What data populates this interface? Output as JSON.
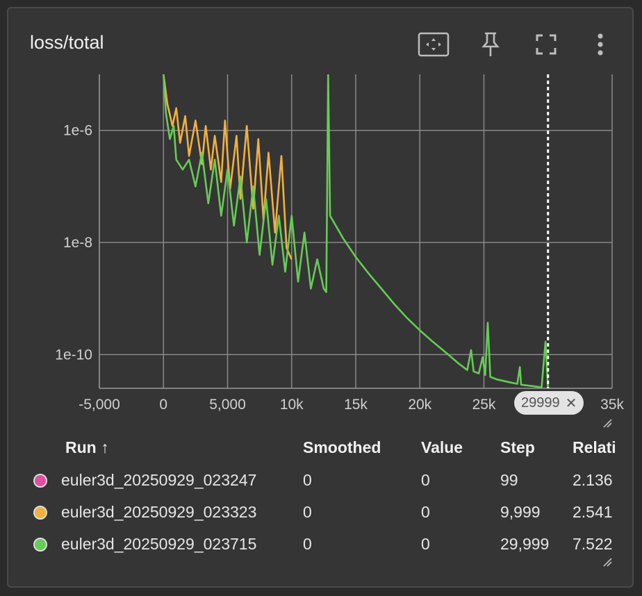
{
  "card": {
    "title": "loss/total",
    "toolbar": [
      "fit-domain",
      "pin",
      "fullscreen",
      "more"
    ]
  },
  "chart_data": {
    "type": "line",
    "yscale": "log",
    "ylim": [
      2.5e-11,
      1e-05
    ],
    "xlim": [
      -5000,
      35000
    ],
    "x_tick_labels": [
      "-5,000",
      "0",
      "5,000",
      "10k",
      "15k",
      "20k",
      "25k",
      "29999",
      "35k"
    ],
    "y_tick_labels": [
      "1e-6",
      "1e-8",
      "1e-10"
    ],
    "grid": true,
    "hover_x": 29999,
    "hover_label": "29999",
    "series": [
      {
        "name": "euler3d_20250929_023247",
        "color": "#e04fa0",
        "points": [
          [
            0,
            0
          ],
          [
            99,
            0
          ]
        ]
      },
      {
        "name": "euler3d_20250929_023323",
        "color": "#f2b040",
        "points": [
          [
            0,
            1e-05
          ],
          [
            300,
            3e-06
          ],
          [
            700,
            1.2e-06
          ],
          [
            1000,
            2.5e-06
          ],
          [
            1300,
            6e-07
          ],
          [
            1700,
            1.8e-06
          ],
          [
            2000,
            3.5e-07
          ],
          [
            2500,
            1.5e-06
          ],
          [
            3000,
            2.5e-07
          ],
          [
            3300,
            1.2e-06
          ],
          [
            3700,
            2e-07
          ],
          [
            4000,
            8e-07
          ],
          [
            4500,
            1.2e-07
          ],
          [
            4800,
            1.5e-06
          ],
          [
            5200,
            9e-08
          ],
          [
            5700,
            8e-07
          ],
          [
            6000,
            6e-08
          ],
          [
            6500,
            1.2e-06
          ],
          [
            7000,
            4e-08
          ],
          [
            7400,
            7e-07
          ],
          [
            7800,
            2.5e-08
          ],
          [
            8200,
            4e-07
          ],
          [
            8700,
            1.5e-08
          ],
          [
            9200,
            3.5e-07
          ],
          [
            9600,
            8e-09
          ],
          [
            9999,
            5e-09
          ]
        ]
      },
      {
        "name": "euler3d_20250929_023715",
        "color": "#66cc55",
        "points": [
          [
            0,
            1e-05
          ],
          [
            200,
            2e-06
          ],
          [
            500,
            7e-07
          ],
          [
            800,
            1.2e-06
          ],
          [
            1000,
            3e-07
          ],
          [
            1500,
            2e-07
          ],
          [
            2000,
            3e-07
          ],
          [
            2500,
            1e-07
          ],
          [
            3000,
            4e-07
          ],
          [
            3500,
            5e-08
          ],
          [
            4000,
            3e-07
          ],
          [
            4500,
            3e-08
          ],
          [
            5000,
            2e-07
          ],
          [
            5500,
            2e-08
          ],
          [
            6000,
            1.5e-07
          ],
          [
            6500,
            1e-08
          ],
          [
            7000,
            1e-07
          ],
          [
            7500,
            6e-09
          ],
          [
            8000,
            6e-08
          ],
          [
            8500,
            4e-09
          ],
          [
            9000,
            3e-08
          ],
          [
            9500,
            3e-09
          ],
          [
            10000,
            3e-08
          ],
          [
            10500,
            2e-09
          ],
          [
            11000,
            1.5e-08
          ],
          [
            11500,
            1.5e-09
          ],
          [
            12000,
            5e-09
          ],
          [
            12500,
            1.5e-09
          ],
          [
            12700,
            1.3e-09
          ],
          [
            12850,
            1e-05
          ],
          [
            13000,
            3e-08
          ],
          [
            14000,
            1.2e-08
          ],
          [
            15000,
            5.5e-09
          ],
          [
            16000,
            2.8e-09
          ],
          [
            17000,
            1.5e-09
          ],
          [
            18000,
            8e-10
          ],
          [
            19000,
            4.5e-10
          ],
          [
            20000,
            2.7e-10
          ],
          [
            21000,
            1.7e-10
          ],
          [
            22000,
            1.1e-10
          ],
          [
            23000,
            7e-11
          ],
          [
            23700,
            5.3e-11
          ],
          [
            24000,
            1.2e-10
          ],
          [
            24200,
            5e-11
          ],
          [
            24600,
            4.6e-11
          ],
          [
            24900,
            9e-11
          ],
          [
            25100,
            4.3e-11
          ],
          [
            25300,
            3.7e-10
          ],
          [
            25500,
            4e-11
          ],
          [
            26000,
            3.6e-11
          ],
          [
            27000,
            3.2e-11
          ],
          [
            27600,
            3e-11
          ],
          [
            27800,
            6e-11
          ],
          [
            27900,
            2.9e-11
          ],
          [
            29000,
            2.7e-11
          ],
          [
            29500,
            2.6e-11
          ],
          [
            29800,
            1.7e-10
          ],
          [
            29999,
            2.6e-11
          ]
        ]
      }
    ]
  },
  "table": {
    "headers": [
      "Run ↑",
      "Smoothed",
      "Value",
      "Step",
      "Relati"
    ],
    "rows": [
      {
        "color": "#e04fa0",
        "run": "euler3d_20250929_023247",
        "smoothed": "0",
        "value": "0",
        "step": "99",
        "relative": "2.136"
      },
      {
        "color": "#f2b040",
        "run": "euler3d_20250929_023323",
        "smoothed": "0",
        "value": "0",
        "step": "9,999",
        "relative": "2.541"
      },
      {
        "color": "#66cc55",
        "run": "euler3d_20250929_023715",
        "smoothed": "0",
        "value": "0",
        "step": "29,999",
        "relative": "7.522"
      }
    ]
  }
}
